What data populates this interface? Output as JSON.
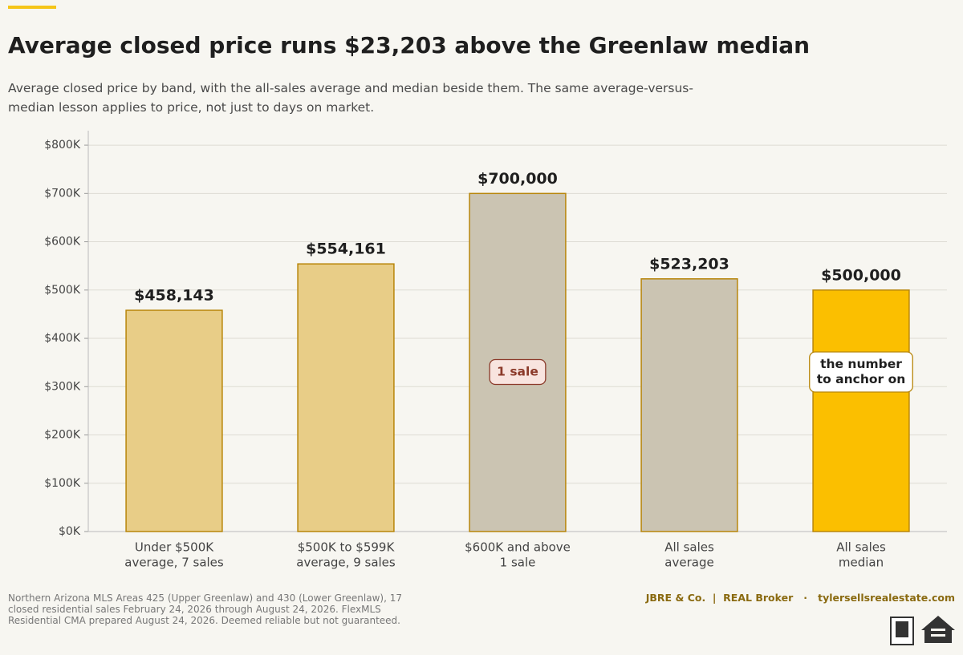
{
  "chart_data": {
    "type": "bar",
    "title": "Average closed price runs $23,203 above the Greenlaw median",
    "subtitle": "Average closed price by band, with the all-sales average and median beside them. The same average-versus-median lesson applies to price, not just to days on market.",
    "categories": [
      [
        "Under $500K",
        "average, 7 sales"
      ],
      [
        "$500K to $599K",
        "average, 9 sales"
      ],
      [
        "$600K and above",
        "1 sale"
      ],
      [
        "All sales",
        "average"
      ],
      [
        "All sales",
        "median"
      ]
    ],
    "values": [
      458143,
      554161,
      700000,
      523203,
      500000
    ],
    "value_labels": [
      "$458,143",
      "$554,161",
      "$700,000",
      "$523,203",
      "$500,000"
    ],
    "colors": [
      "#e8cd87",
      "#e8cd87",
      "#cbc4b2",
      "#cbc4b2",
      "#fbbf00"
    ],
    "bar_notes": [
      null,
      null,
      [
        "1 sale"
      ],
      null,
      [
        "the number",
        "to anchor on"
      ]
    ],
    "ylim": [
      0,
      830000
    ],
    "yticks": [
      {
        "value": 0,
        "label": "$0K"
      },
      {
        "value": 100000,
        "label": "$100K"
      },
      {
        "value": 200000,
        "label": "$200K"
      },
      {
        "value": 300000,
        "label": "$300K"
      },
      {
        "value": 400000,
        "label": "$400K"
      },
      {
        "value": 500000,
        "label": "$500K"
      },
      {
        "value": 600000,
        "label": "$600K"
      },
      {
        "value": 700000,
        "label": "$700K"
      },
      {
        "value": 800000,
        "label": "$800K"
      }
    ],
    "grid": true,
    "source": "Northern Arizona MLS Areas 425 (Upper Greenlaw) and 430 (Lower Greenlaw), 17 closed residential sales February 24, 2026 through August 24, 2026. FlexMLS Residential CMA prepared August 24, 2026. Deemed reliable but not guaranteed.",
    "brand": "JBRE & Co.  |  REAL Broker   ·   tylersellsrealestate.com"
  }
}
